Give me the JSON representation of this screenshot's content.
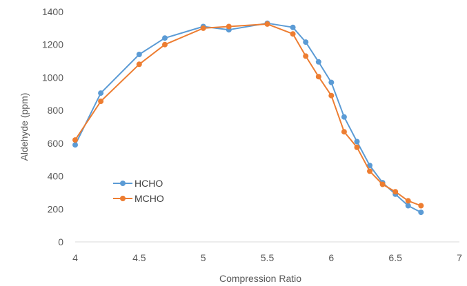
{
  "chart_data": {
    "type": "line",
    "title": "",
    "xlabel": "Compression Ratio",
    "ylabel": "Aldehyde  (ppm)",
    "xlim": [
      4,
      7
    ],
    "ylim": [
      0,
      1400
    ],
    "x_ticks": [
      "4",
      "4.5",
      "5",
      "5.5",
      "6",
      "6.5",
      "7"
    ],
    "y_ticks": [
      "0",
      "200",
      "400",
      "600",
      "800",
      "1000",
      "1200",
      "1400"
    ],
    "grid": false,
    "legend_position": "left",
    "series": [
      {
        "name": "HCHO",
        "color": "#5B9BD5",
        "x": [
          4,
          4.2,
          4.5,
          4.7,
          5,
          5.2,
          5.5,
          5.7,
          5.8,
          5.9,
          6,
          6.1,
          6.2,
          6.3,
          6.4,
          6.5,
          6.6,
          6.7
        ],
        "y": [
          590,
          905,
          1140,
          1240,
          1310,
          1290,
          1330,
          1305,
          1215,
          1095,
          970,
          760,
          610,
          465,
          360,
          290,
          220,
          180
        ]
      },
      {
        "name": "MCHO",
        "color": "#ED7D31",
        "x": [
          4,
          4.2,
          4.5,
          4.7,
          5,
          5.2,
          5.5,
          5.7,
          5.8,
          5.9,
          6,
          6.1,
          6.2,
          6.3,
          6.4,
          6.5,
          6.6,
          6.7
        ],
        "y": [
          620,
          855,
          1080,
          1200,
          1300,
          1310,
          1325,
          1265,
          1130,
          1005,
          890,
          670,
          575,
          430,
          350,
          305,
          250,
          220
        ]
      }
    ]
  }
}
